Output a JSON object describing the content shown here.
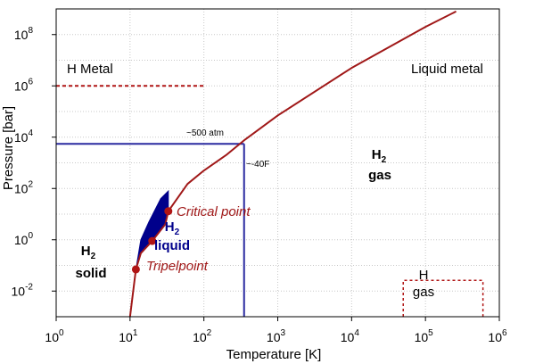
{
  "chart_data": {
    "type": "line",
    "title": "",
    "xlabel": "Temperature [K]",
    "ylabel": "Pressure [bar]",
    "x_scale": "log",
    "y_scale": "log",
    "xlim": [
      1,
      1000000
    ],
    "ylim": [
      0.001,
      1000000000
    ],
    "grid": true,
    "x_ticks": [
      {
        "base": "10",
        "exp": "0"
      },
      {
        "base": "10",
        "exp": "1"
      },
      {
        "base": "10",
        "exp": "2"
      },
      {
        "base": "10",
        "exp": "3"
      },
      {
        "base": "10",
        "exp": "4"
      },
      {
        "base": "10",
        "exp": "5"
      },
      {
        "base": "10",
        "exp": "6"
      }
    ],
    "y_ticks": [
      {
        "base": "10",
        "exp": "-2"
      },
      {
        "base": "10",
        "exp": "0"
      },
      {
        "base": "10",
        "exp": "2"
      },
      {
        "base": "10",
        "exp": "4"
      },
      {
        "base": "10",
        "exp": "6"
      },
      {
        "base": "10",
        "exp": "8"
      }
    ],
    "phase_boundary": {
      "color": "#a01818",
      "points": [
        [
          10,
          0.001
        ],
        [
          12,
          0.07
        ],
        [
          14,
          0.3
        ],
        [
          20,
          0.9
        ],
        [
          30,
          4
        ],
        [
          33,
          13
        ],
        [
          60,
          150
        ],
        [
          100,
          500
        ],
        [
          200,
          2000
        ],
        [
          360,
          8000
        ],
        [
          1000,
          70000
        ],
        [
          10000,
          5000000
        ],
        [
          100000,
          200000000
        ],
        [
          260000,
          800000000
        ]
      ]
    },
    "liquid_region": {
      "color": "#00008b",
      "points": [
        [
          12,
          0.07
        ],
        [
          14,
          0.3
        ],
        [
          20,
          0.9
        ],
        [
          30,
          4
        ],
        [
          33,
          13
        ],
        [
          33,
          80
        ],
        [
          26,
          40
        ],
        [
          18,
          5
        ],
        [
          14,
          1
        ],
        [
          12,
          0.07
        ]
      ]
    },
    "markers": [
      {
        "x": 12,
        "y": 0.07,
        "label": "Tripelpoint"
      },
      {
        "x": 20,
        "y": 0.9,
        "label": ""
      },
      {
        "x": 33,
        "y": 13,
        "label": "Critical point"
      }
    ],
    "marker_color": "#b01515",
    "reference_lines": {
      "color": "#2a2aa0",
      "pressure": {
        "y": 5500,
        "label": "~500 atm"
      },
      "temperature": {
        "x": 350,
        "label": "~-40F"
      }
    },
    "h_metal_line": {
      "color": "#b01515",
      "y": 1000000,
      "x": [
        1,
        100
      ]
    },
    "h_gas_box": {
      "color": "#b01515",
      "x": [
        50000,
        600000
      ],
      "y": [
        0.01,
        0.0015
      ]
    },
    "regions": {
      "h_metal": "H Metal",
      "liquid_metal": "Liquid metal",
      "h2_gas": {
        "base": "H",
        "sub": "2",
        "label": "gas"
      },
      "h2_liquid": {
        "base": "H",
        "sub": "2",
        "label": "liquid"
      },
      "h2_solid": {
        "base": "H",
        "sub": "2",
        "label": "solid"
      },
      "h_gas": {
        "base": "H",
        "label": "gas"
      }
    }
  }
}
